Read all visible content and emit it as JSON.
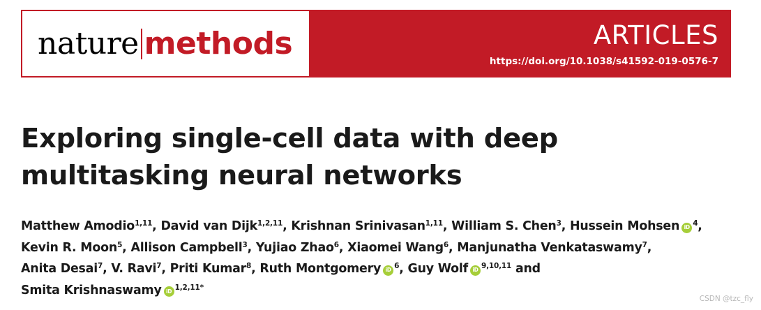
{
  "journal": {
    "name_part1": "nature",
    "name_part2": "methods"
  },
  "header": {
    "article_type": "ARTICLES",
    "doi_url": "https://doi.org/10.1038/s41592-019-0576-7"
  },
  "title": "Exploring single-cell data with deep multitasking neural networks",
  "authors": [
    {
      "name": "Matthew Amodio",
      "affiliations": "1,11",
      "orcid": false
    },
    {
      "name": "David van Dijk",
      "affiliations": "1,2,11",
      "orcid": false
    },
    {
      "name": "Krishnan Srinivasan",
      "affiliations": "1,11",
      "orcid": false
    },
    {
      "name": "William S. Chen",
      "affiliations": "3",
      "orcid": false
    },
    {
      "name": "Hussein Mohsen",
      "affiliations": "4",
      "orcid": true
    },
    {
      "name": "Kevin R. Moon",
      "affiliations": "5",
      "orcid": false
    },
    {
      "name": "Allison Campbell",
      "affiliations": "3",
      "orcid": false
    },
    {
      "name": "Yujiao Zhao",
      "affiliations": "6",
      "orcid": false
    },
    {
      "name": "Xiaomei Wang",
      "affiliations": "6",
      "orcid": false
    },
    {
      "name": "Manjunatha Venkataswamy",
      "affiliations": "7",
      "orcid": false
    },
    {
      "name": "Anita Desai",
      "affiliations": "7",
      "orcid": false
    },
    {
      "name": "V. Ravi",
      "affiliations": "7",
      "orcid": false
    },
    {
      "name": "Priti Kumar",
      "affiliations": "8",
      "orcid": false
    },
    {
      "name": "Ruth Montgomery",
      "affiliations": "6",
      "orcid": true
    },
    {
      "name": "Guy Wolf",
      "affiliations": "9,10,11",
      "orcid": true
    },
    {
      "name": "Smita Krishnaswamy",
      "affiliations": "1,2,11",
      "orcid": true,
      "suffix": "*"
    }
  ],
  "authors_sep": ", ",
  "authors_last_conj": "and",
  "orcid_badge": "iD",
  "colors": {
    "nature_red": "#c21b26",
    "orcid_green": "#a6ce39"
  },
  "watermark": "CSDN @tzc_fly"
}
